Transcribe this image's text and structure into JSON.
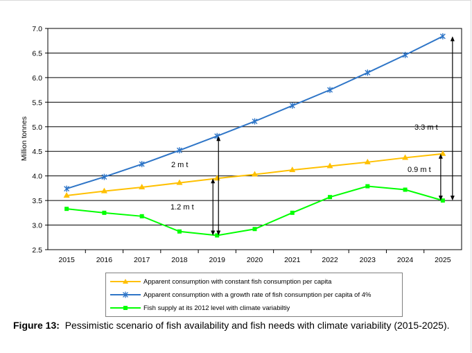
{
  "chart_data": {
    "type": "line",
    "ylabel": "Million tonnes",
    "ylim": [
      2.5,
      7.0
    ],
    "yticks": [
      "7.0",
      "6.5",
      "6.0",
      "5.5",
      "5.0",
      "4.5",
      "4.0",
      "3.5",
      "3.0",
      "2.5"
    ],
    "categories": [
      "2015",
      "2016",
      "2017",
      "2018",
      "2019",
      "2020",
      "2021",
      "2022",
      "2023",
      "2024",
      "2025"
    ],
    "grid": true,
    "legend_position": "bottom",
    "series": [
      {
        "name": "Apparent consumption with constant fish consumption per capita",
        "color": "#ffc000",
        "marker": "triangle",
        "values": [
          3.6,
          3.69,
          3.77,
          3.86,
          3.95,
          4.03,
          4.12,
          4.2,
          4.28,
          4.37,
          4.45
        ]
      },
      {
        "name": "Apparent consumption with a growth rate of fish consumption per capita of 4%",
        "color": "#2e75c7",
        "marker": "star",
        "values": [
          3.74,
          3.98,
          4.24,
          4.52,
          4.81,
          5.11,
          5.43,
          5.75,
          6.1,
          6.46,
          6.84
        ]
      },
      {
        "name": "Fish supply at its 2012 level with climate variabiltiy",
        "color": "#00ff00",
        "marker": "square",
        "values": [
          3.33,
          3.25,
          3.18,
          2.87,
          2.79,
          2.92,
          3.25,
          3.57,
          3.79,
          3.72,
          3.5
        ]
      }
    ],
    "annotations": [
      "2 m t",
      "1.2 m t",
      "3.3 m t",
      "0.9 m t"
    ]
  },
  "caption": {
    "label": "Figure 13:",
    "text": "Pessimistic scenario of fish availability and fish needs with climate variability (2015-2025)."
  }
}
